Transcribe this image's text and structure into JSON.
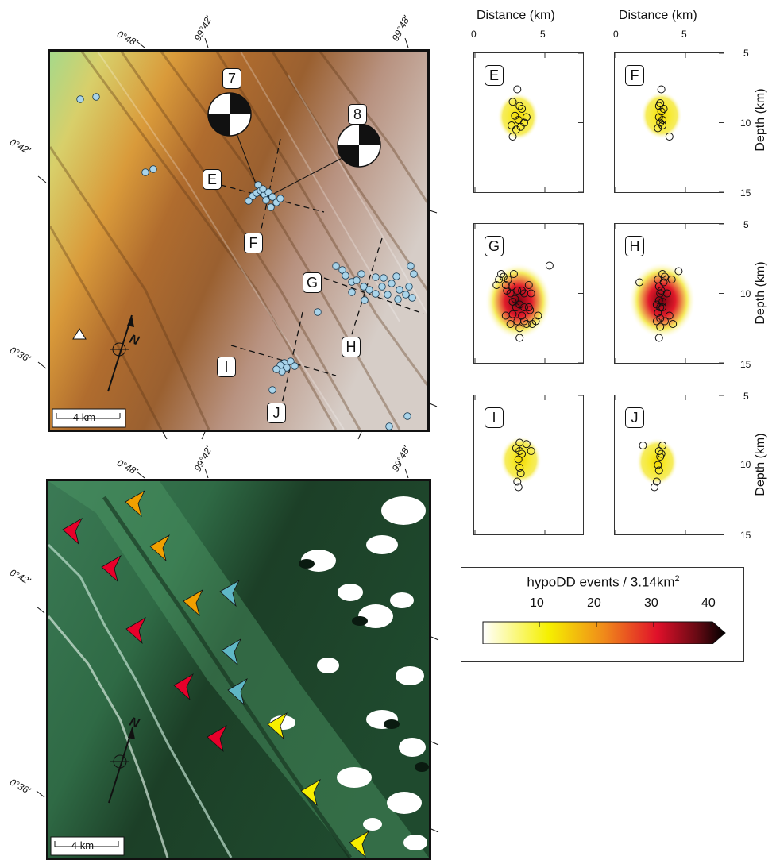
{
  "top_map": {
    "lon_ticks": [
      "0°48'",
      "99°42'",
      "99°48'"
    ],
    "lat_ticks": [
      "0°42'",
      "0°36'"
    ],
    "scale_label": "4 km",
    "north_label": "N",
    "focal_labels": [
      "7",
      "8"
    ],
    "profile_labels": [
      "E",
      "F",
      "G",
      "H",
      "I",
      "J"
    ]
  },
  "bottom_map": {
    "lon_ticks": [
      "0°48'",
      "99°42'",
      "99°48'"
    ],
    "lat_ticks": [
      "0°42'",
      "0°36'"
    ],
    "scale_label": "4 km",
    "north_label": "N"
  },
  "sections": {
    "x_axis_title": "Distance (km)",
    "x_ticks": [
      "0",
      "5"
    ],
    "y_axis_title": "Depth (km)",
    "y_ticks": [
      "5",
      "10",
      "15"
    ],
    "panels": [
      "E",
      "F",
      "G",
      "H",
      "I",
      "J"
    ]
  },
  "legend": {
    "title": "hypoDD events / 3.14km",
    "title_sup": "2",
    "ticks": [
      "10",
      "20",
      "30",
      "40"
    ]
  },
  "colors": {
    "event": "#a9d4ea",
    "arrow_red": "#e8002a",
    "arrow_orange": "#f0a000",
    "arrow_cyan": "#5fb7c6",
    "arrow_yellow": "#f7ef00"
  }
}
